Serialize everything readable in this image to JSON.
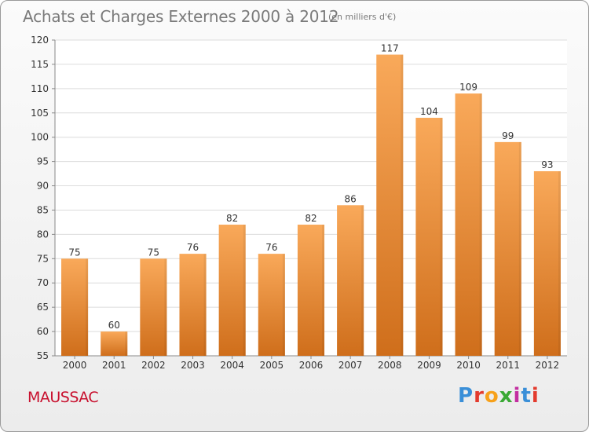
{
  "title": "Achats et Charges Externes 2000 à 2012",
  "subtitle": "(en milliers d'€)",
  "commune": "MAUSSAC",
  "logo": {
    "text": "Proxiti",
    "letter_colors": [
      "#3a8fd8",
      "#e33b2e",
      "#f7a11a",
      "#3aa935",
      "#c32ea0",
      "#3a8fd8",
      "#e33b2e"
    ]
  },
  "colors": {
    "bar_top": "#f9a95a",
    "bar_bottom": "#cf6e1b",
    "commune": "#c8102e",
    "grid": "#dcdcdc",
    "text": "#333333"
  },
  "chart_data": {
    "type": "bar",
    "title": "Achats et Charges Externes 2000 à 2012",
    "subtitle": "(en milliers d'€)",
    "categories": [
      "2000",
      "2001",
      "2002",
      "2003",
      "2004",
      "2005",
      "2006",
      "2007",
      "2008",
      "2009",
      "2010",
      "2011",
      "2012"
    ],
    "values": [
      75,
      60,
      75,
      76,
      82,
      76,
      82,
      86,
      117,
      104,
      109,
      99,
      93
    ],
    "ylim": [
      55,
      120
    ],
    "yticks": [
      55,
      60,
      65,
      70,
      75,
      80,
      85,
      90,
      95,
      100,
      105,
      110,
      115,
      120
    ],
    "grid": true,
    "data_labels": true
  }
}
